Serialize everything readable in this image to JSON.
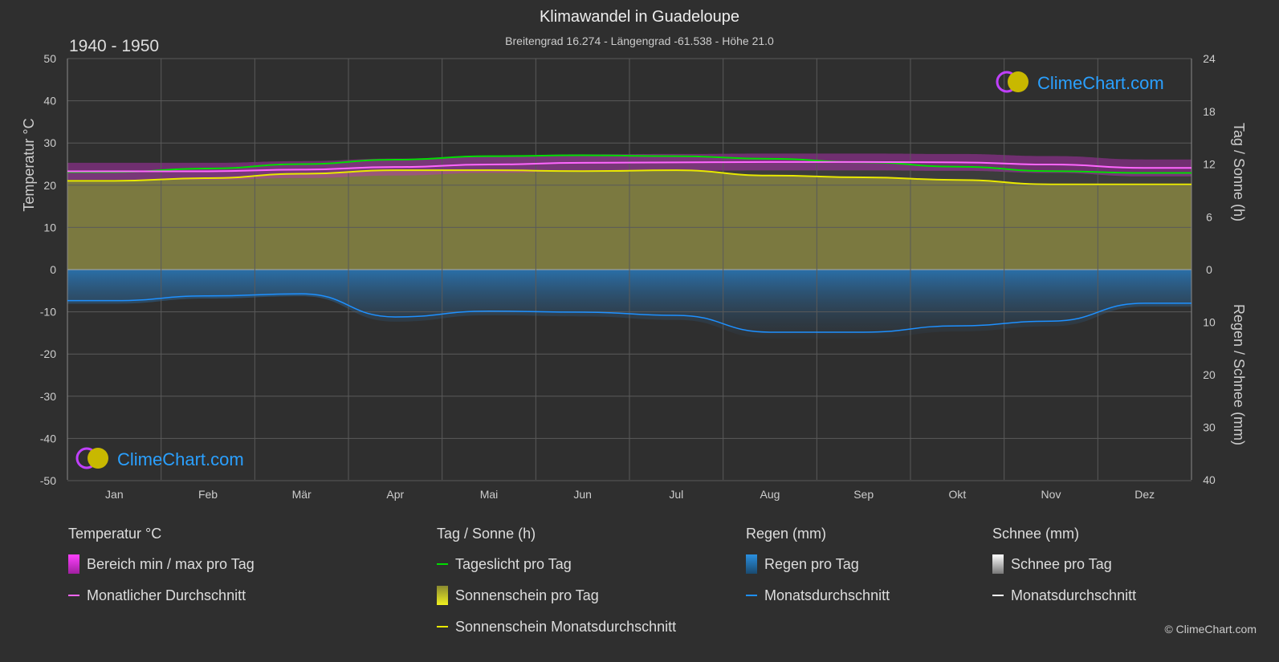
{
  "title": "Klimawandel in Guadeloupe",
  "subtitle": "Breitengrad 16.274 - Längengrad -61.538 - Höhe 21.0",
  "period": "1940 - 1950",
  "logo_text": "ClimeChart.com",
  "copyright": "© ClimeChart.com",
  "chart_data": {
    "type": "line",
    "categories": [
      "Jan",
      "Feb",
      "Mär",
      "Apr",
      "Mai",
      "Jun",
      "Jul",
      "Aug",
      "Sep",
      "Okt",
      "Nov",
      "Dez"
    ],
    "left_axis": {
      "label": "Temperatur °C",
      "range": [
        -50,
        50
      ],
      "ticks": [
        50,
        40,
        30,
        20,
        10,
        0,
        -10,
        -20,
        -30,
        -40,
        -50
      ]
    },
    "right_axis_top": {
      "label": "Tag / Sonne (h)",
      "range": [
        0,
        24
      ],
      "ticks": [
        24,
        18,
        12,
        6,
        0
      ]
    },
    "right_axis_bottom": {
      "label": "Regen / Schnee (mm)",
      "range": [
        0,
        40
      ],
      "ticks": [
        0,
        10,
        20,
        30,
        40
      ]
    },
    "grid": true,
    "series": [
      {
        "name": "Monatlicher Durchschnitt",
        "axis": "temperature",
        "color": "#ff66ff",
        "values": [
          23.3,
          23.3,
          23.7,
          24.3,
          24.9,
          25.3,
          25.4,
          25.5,
          25.5,
          25.4,
          24.9,
          24.1
        ]
      },
      {
        "name": "Tageslicht pro Tag",
        "axis": "sun",
        "color": "#00dd00",
        "values": [
          11.1,
          11.5,
          12.0,
          12.5,
          12.9,
          13.0,
          12.9,
          12.6,
          12.2,
          11.7,
          11.2,
          11.0
        ]
      },
      {
        "name": "Sonnenschein Monatsdurchschnitt",
        "axis": "sun",
        "color": "#e8e800",
        "values": [
          10.1,
          10.4,
          10.9,
          11.3,
          11.3,
          11.2,
          11.3,
          10.7,
          10.5,
          10.2,
          9.7,
          9.7
        ]
      },
      {
        "name": "Monatsdurchschnitt",
        "axis": "rain",
        "color": "#1e90ff",
        "values": [
          5.9,
          5.0,
          4.6,
          9.0,
          7.9,
          8.1,
          8.7,
          11.9,
          11.9,
          10.7,
          9.8,
          6.4
        ]
      }
    ]
  },
  "legend": {
    "groups": [
      {
        "title": "Temperatur °C",
        "items": [
          "Bereich min / max pro Tag",
          "Monatlicher Durchschnitt"
        ]
      },
      {
        "title": "Tag / Sonne (h)",
        "items": [
          "Tageslicht pro Tag",
          "Sonnenschein pro Tag",
          "Sonnenschein Monatsdurchschnitt"
        ]
      },
      {
        "title": "Regen (mm)",
        "items": [
          "Regen pro Tag",
          "Monatsdurchschnitt"
        ]
      },
      {
        "title": "Schnee (mm)",
        "items": [
          "Schnee pro Tag",
          "Monatsdurchschnitt"
        ]
      }
    ]
  }
}
